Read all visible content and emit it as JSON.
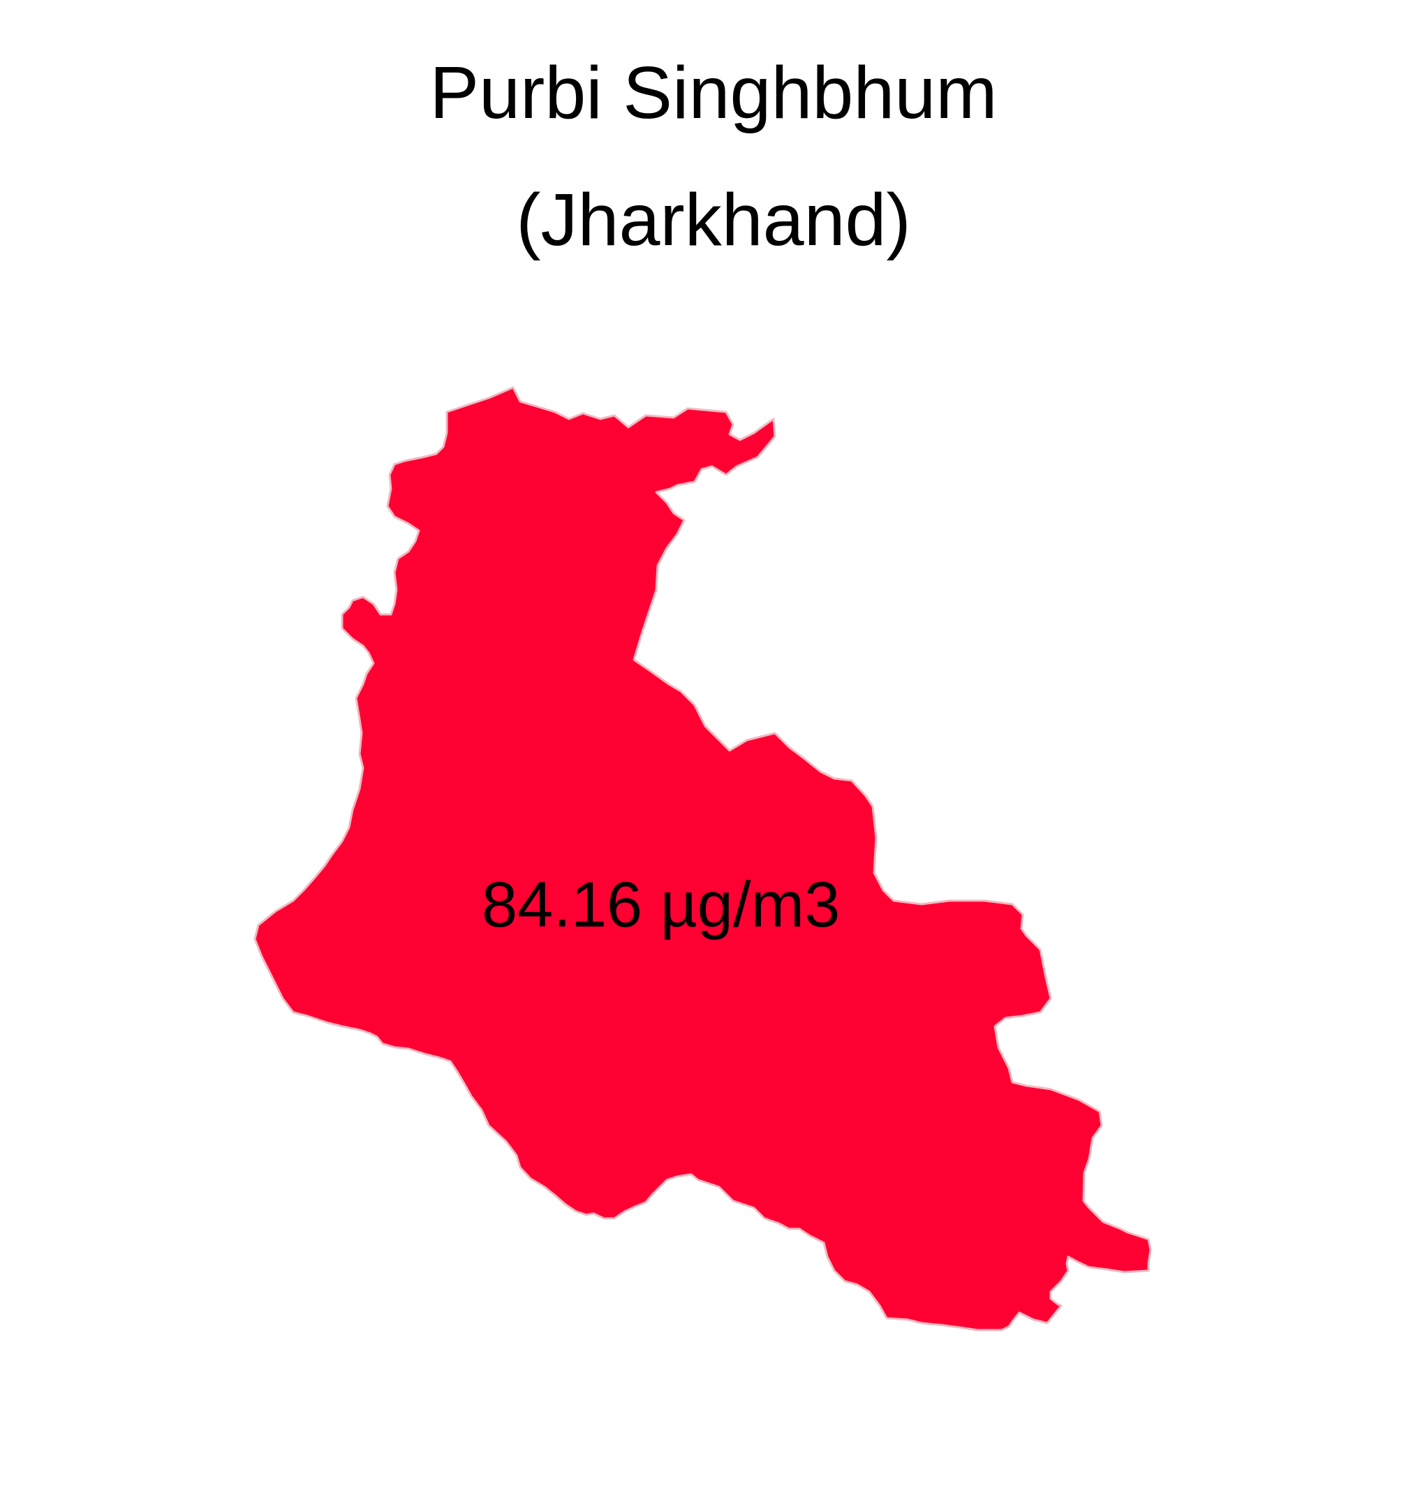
{
  "map": {
    "title_line_1": "Purbi Singhbhum",
    "title_line_2": "(Jharkhand)",
    "region_name": "Purbi Singhbhum",
    "value_label": "84.16 µg/m3",
    "fill_color": "#FF0033",
    "stroke_color": "#F2B8C0"
  }
}
